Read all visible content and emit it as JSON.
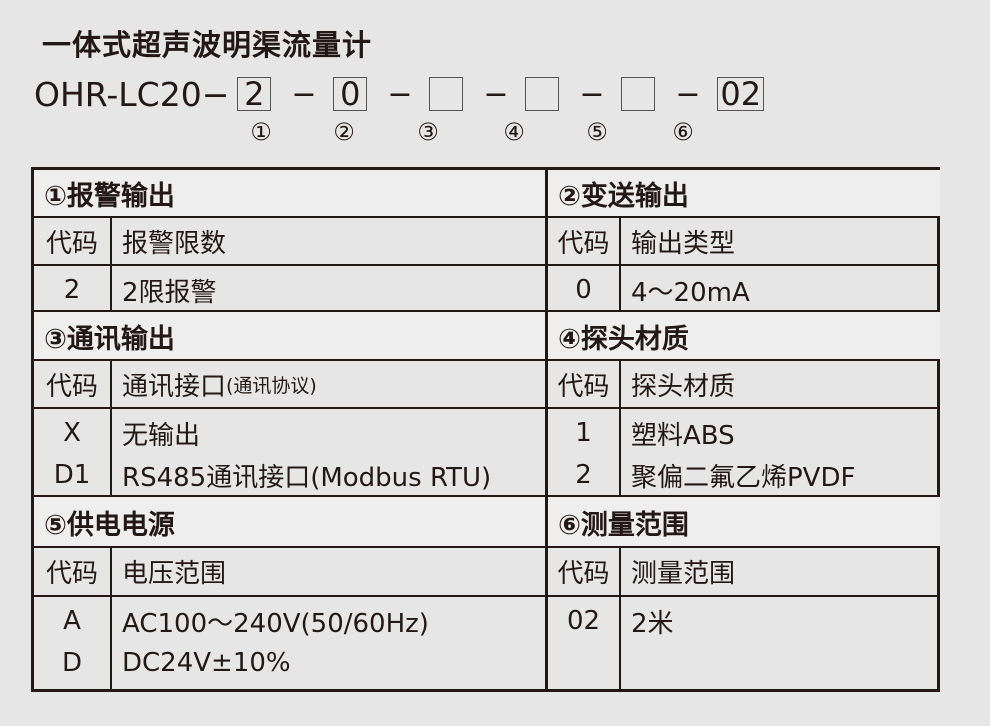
{
  "title": "一体式超声波明渠流量计",
  "model": {
    "prefix": "OHR-LC20−",
    "slots": [
      "2",
      "0",
      "",
      "",
      "",
      "02"
    ],
    "markers": [
      "①",
      "②",
      "③",
      "④",
      "⑤",
      "⑥"
    ]
  },
  "sections": [
    {
      "title": "①报警输出",
      "code_header": "代码",
      "desc_header": "报警限数",
      "rows": [
        {
          "code": "2",
          "desc": "2限报警"
        }
      ]
    },
    {
      "title": "②变送输出",
      "code_header": "代码",
      "desc_header": "输出类型",
      "rows": [
        {
          "code": "0",
          "desc": "4～20mA"
        }
      ]
    },
    {
      "title": "③通讯输出",
      "code_header": "代码",
      "desc_header": "通讯接口",
      "desc_header_note": "(通讯协议)",
      "rows": [
        {
          "code": "X",
          "desc": "无输出"
        },
        {
          "code": "D1",
          "desc": "RS485通讯接口(Modbus RTU)"
        }
      ]
    },
    {
      "title": "④探头材质",
      "code_header": "代码",
      "desc_header": "探头材质",
      "rows": [
        {
          "code": "1",
          "desc": "塑料ABS"
        },
        {
          "code": "2",
          "desc": "聚偏二氟乙烯PVDF"
        }
      ]
    },
    {
      "title": "⑤供电电源",
      "code_header": "代码",
      "desc_header": "电压范围",
      "rows": [
        {
          "code": "A",
          "desc": "AC100～240V(50/60Hz)"
        },
        {
          "code": "D",
          "desc": "DC24V±10%"
        }
      ]
    },
    {
      "title": "⑥测量范围",
      "code_header": "代码",
      "desc_header": "测量范围",
      "rows": [
        {
          "code": "02",
          "desc": "2米"
        }
      ]
    }
  ]
}
